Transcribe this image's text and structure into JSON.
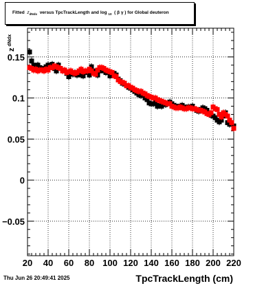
{
  "title": {
    "prefix": "Fitted",
    "z": "z",
    "z_sub": "dNdx",
    "middle": "versus TpcTrackLength and log",
    "log_sub": "10",
    "paren": "( β γ ) for Global deuteron"
  },
  "footer": {
    "datetime": "Thu Jun 26 20:49:41 2025"
  },
  "axes": {
    "x_title": "TpcTrackLength (cm)",
    "y_title": "z",
    "y_title_sub": "dNdx",
    "x_ticks": [
      "20",
      "40",
      "60",
      "80",
      "100",
      "120",
      "140",
      "160",
      "180",
      "200",
      "220"
    ],
    "y_ticks": [
      "−0.05",
      "0",
      "0.05",
      "0.1",
      "0.15"
    ]
  },
  "colors": {
    "series_black": "#000000",
    "series_red": "#ff0000",
    "grid": "#000000"
  },
  "chart_data": {
    "type": "scatter",
    "xlim": [
      20,
      220
    ],
    "ylim": [
      -0.092,
      0.185
    ],
    "grid": true,
    "xlabel": "TpcTrackLength (cm)",
    "ylabel": "z_dNdx",
    "series": [
      {
        "color": "#000000",
        "x": [
          22,
          24,
          26,
          28,
          30,
          32,
          34,
          36,
          38,
          40,
          42,
          44,
          46,
          48,
          50,
          52,
          54,
          56,
          58,
          60,
          62,
          64,
          66,
          68,
          70,
          72,
          74,
          76,
          78,
          80,
          82,
          84,
          86,
          88,
          90,
          92,
          94,
          96,
          98,
          100,
          102,
          104,
          106,
          108,
          110,
          112,
          114,
          116,
          118,
          120,
          122,
          124,
          126,
          128,
          130,
          132,
          134,
          136,
          138,
          140,
          142,
          144,
          146,
          148,
          150,
          152,
          154,
          156,
          158,
          160,
          162,
          164,
          166,
          168,
          170,
          172,
          174,
          176,
          178,
          180,
          182,
          184,
          186,
          188,
          190,
          192,
          194,
          196,
          198,
          200,
          202,
          204,
          206,
          208,
          210,
          212,
          214,
          216,
          218,
          220
        ],
        "y": [
          0.156,
          0.145,
          0.14,
          0.138,
          0.14,
          0.137,
          0.134,
          0.136,
          0.138,
          0.14,
          0.138,
          0.141,
          0.136,
          0.133,
          0.14,
          0.136,
          0.134,
          0.133,
          0.13,
          0.126,
          0.13,
          0.129,
          0.131,
          0.128,
          0.13,
          0.128,
          0.127,
          0.131,
          0.132,
          0.128,
          0.138,
          0.133,
          0.129,
          0.128,
          0.133,
          0.136,
          0.133,
          0.131,
          0.131,
          0.127,
          0.131,
          0.13,
          0.128,
          0.123,
          0.121,
          0.118,
          0.117,
          0.115,
          0.113,
          0.112,
          0.11,
          0.108,
          0.106,
          0.104,
          0.103,
          0.103,
          0.1,
          0.098,
          0.094,
          0.093,
          0.093,
          0.095,
          0.09,
          0.091,
          0.09,
          0.094,
          0.092,
          0.094,
          0.095,
          0.093,
          0.091,
          0.09,
          0.089,
          0.09,
          0.091,
          0.089,
          0.088,
          0.089,
          0.089,
          0.09,
          0.087,
          0.085,
          0.084,
          0.086,
          0.088,
          0.087,
          0.085,
          0.082,
          0.079,
          0.078,
          0.076,
          0.073,
          0.071,
          0.073,
          0.078,
          0.082,
          0.07,
          0.068,
          0.07,
          0.066
        ]
      },
      {
        "color": "#ff0000",
        "x": [
          22,
          24,
          26,
          28,
          30,
          32,
          34,
          36,
          38,
          40,
          42,
          44,
          46,
          48,
          50,
          52,
          54,
          56,
          58,
          60,
          62,
          64,
          66,
          68,
          70,
          72,
          74,
          76,
          78,
          80,
          82,
          84,
          86,
          88,
          90,
          92,
          94,
          96,
          98,
          100,
          102,
          104,
          106,
          108,
          110,
          112,
          114,
          116,
          118,
          120,
          122,
          124,
          126,
          128,
          130,
          132,
          134,
          136,
          138,
          140,
          142,
          144,
          146,
          148,
          150,
          152,
          154,
          156,
          158,
          160,
          162,
          164,
          166,
          168,
          170,
          172,
          174,
          176,
          178,
          180,
          182,
          184,
          186,
          188,
          190,
          192,
          194,
          196,
          198,
          200,
          202,
          204,
          206,
          208,
          210,
          212,
          214,
          216,
          218,
          220
        ],
        "y": [
          0.137,
          0.136,
          0.134,
          0.135,
          0.133,
          0.134,
          0.134,
          0.133,
          0.135,
          0.134,
          0.137,
          0.137,
          0.139,
          0.138,
          0.137,
          0.136,
          0.133,
          0.134,
          0.131,
          0.132,
          0.133,
          0.131,
          0.13,
          0.131,
          0.133,
          0.135,
          0.132,
          0.133,
          0.133,
          0.135,
          0.133,
          0.13,
          0.129,
          0.134,
          0.137,
          0.137,
          0.136,
          0.134,
          0.133,
          0.132,
          0.131,
          0.127,
          0.126,
          0.122,
          0.12,
          0.119,
          0.118,
          0.115,
          0.115,
          0.113,
          0.112,
          0.11,
          0.109,
          0.108,
          0.108,
          0.106,
          0.105,
          0.103,
          0.102,
          0.101,
          0.1,
          0.1,
          0.098,
          0.097,
          0.096,
          0.095,
          0.094,
          0.093,
          0.093,
          0.09,
          0.089,
          0.088,
          0.088,
          0.089,
          0.088,
          0.087,
          0.087,
          0.088,
          0.088,
          0.087,
          0.087,
          0.086,
          0.085,
          0.085,
          0.084,
          0.083,
          0.081,
          0.08,
          0.082,
          0.089,
          0.087,
          0.086,
          0.08,
          0.077,
          0.082,
          0.08,
          0.078,
          0.073,
          0.07,
          0.063
        ]
      }
    ]
  }
}
